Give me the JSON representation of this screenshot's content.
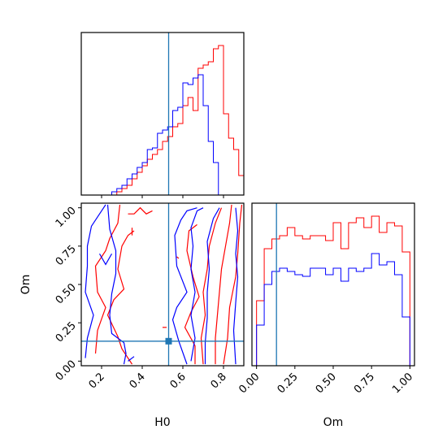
{
  "chart_data": {
    "type": "corner",
    "truth": {
      "H0": 0.53,
      "Om": 0.13
    },
    "series": [
      {
        "color": "#ff0000"
      },
      {
        "color": "#0000ff"
      }
    ],
    "truth_color": "#1f77b4",
    "hist_H0": {
      "xlim": [
        0.1,
        0.9
      ],
      "ticks": [
        0.2,
        0.4,
        0.6,
        0.8
      ],
      "bin_edges": [
        0.1,
        0.125,
        0.15,
        0.175,
        0.2,
        0.225,
        0.25,
        0.275,
        0.3,
        0.325,
        0.35,
        0.375,
        0.4,
        0.425,
        0.45,
        0.475,
        0.5,
        0.525,
        0.55,
        0.575,
        0.6,
        0.625,
        0.65,
        0.675,
        0.7,
        0.725,
        0.75,
        0.775,
        0.8,
        0.825,
        0.85,
        0.875,
        0.9
      ],
      "red": [
        0,
        0,
        0,
        0,
        0,
        0,
        0,
        0.02,
        0.04,
        0.06,
        0.1,
        0.14,
        0.18,
        0.22,
        0.25,
        0.28,
        0.33,
        0.36,
        0.42,
        0.44,
        0.55,
        0.6,
        0.52,
        0.78,
        0.8,
        0.82,
        0.9,
        0.92,
        0.5,
        0.35,
        0.28,
        0.12
      ],
      "blue": [
        0,
        0,
        0,
        0,
        0,
        0,
        0.02,
        0.04,
        0.06,
        0.1,
        0.13,
        0.17,
        0.2,
        0.28,
        0.29,
        0.38,
        0.4,
        0.42,
        0.52,
        0.54,
        0.69,
        0.68,
        0.72,
        0.74,
        0.55,
        0.33,
        0.2,
        0,
        0,
        0,
        0,
        0
      ]
    },
    "hist_Om": {
      "xlim": [
        -0.03,
        1.03
      ],
      "ticks": [
        0.0,
        0.25,
        0.5,
        0.75,
        1.0
      ],
      "tick_labels": [
        "0.00",
        "0.25",
        "0.50",
        "0.75",
        "1.00"
      ],
      "xlabel": "Om",
      "bin_edges": [
        0.0,
        0.05,
        0.1,
        0.15,
        0.2,
        0.25,
        0.3,
        0.35,
        0.4,
        0.45,
        0.5,
        0.55,
        0.6,
        0.65,
        0.7,
        0.75,
        0.8,
        0.85,
        0.9,
        0.95,
        1.0
      ],
      "red": [
        0.4,
        0.72,
        0.78,
        0.8,
        0.85,
        0.8,
        0.78,
        0.8,
        0.8,
        0.77,
        0.88,
        0.72,
        0.88,
        0.91,
        0.85,
        0.92,
        0.82,
        0.88,
        0.86,
        0.7
      ],
      "blue": [
        0.25,
        0.5,
        0.58,
        0.6,
        0.58,
        0.56,
        0.55,
        0.6,
        0.6,
        0.56,
        0.6,
        0.52,
        0.6,
        0.58,
        0.6,
        0.69,
        0.62,
        0.64,
        0.56,
        0.3
      ]
    },
    "contour": {
      "xlim": [
        0.1,
        0.9
      ],
      "ylim": [
        -0.03,
        1.03
      ],
      "xticks": [
        0.2,
        0.4,
        0.6,
        0.8
      ],
      "yticks": [
        0.0,
        0.25,
        0.5,
        0.75,
        1.0
      ],
      "xtick_labels": [
        "0.2",
        "0.4",
        "0.6",
        "0.8"
      ],
      "ytick_labels": [
        "0.00",
        "0.25",
        "0.50",
        "0.75",
        "1.00"
      ],
      "xlabel": "H0",
      "ylabel": "Om",
      "blue": [
        [
          [
            0.31,
            -0.02
          ],
          [
            0.32,
            0.05
          ],
          [
            0.31,
            0.12
          ],
          [
            0.25,
            0.18
          ],
          [
            0.24,
            0.3
          ],
          [
            0.25,
            0.44
          ],
          [
            0.27,
            0.57
          ],
          [
            0.27,
            0.72
          ],
          [
            0.24,
            0.86
          ],
          [
            0.23,
            1.02
          ]
        ],
        [
          [
            0.62,
            -0.02
          ],
          [
            0.58,
            0.13
          ],
          [
            0.55,
            0.27
          ],
          [
            0.57,
            0.35
          ],
          [
            0.62,
            0.45
          ],
          [
            0.57,
            0.62
          ],
          [
            0.56,
            0.82
          ],
          [
            0.59,
            0.92
          ],
          [
            0.62,
            0.98
          ],
          [
            0.67,
            1.0
          ]
        ],
        [
          [
            0.12,
            0.02
          ],
          [
            0.13,
            0.15
          ],
          [
            0.16,
            0.3
          ],
          [
            0.12,
            0.45
          ],
          [
            0.13,
            0.62
          ],
          [
            0.13,
            0.75
          ],
          [
            0.15,
            0.88
          ],
          [
            0.2,
            0.98
          ],
          [
            0.22,
            1.02
          ]
        ],
        [
          [
            0.19,
            0.7
          ],
          [
            0.22,
            0.63
          ],
          [
            0.25,
            0.7
          ]
        ],
        [
          [
            0.33,
            0.0
          ],
          [
            0.36,
            0.03
          ]
        ],
        [
          [
            0.64,
            0.0
          ],
          [
            0.66,
            0.15
          ],
          [
            0.64,
            0.3
          ],
          [
            0.66,
            0.45
          ],
          [
            0.64,
            0.6
          ],
          [
            0.65,
            0.75
          ],
          [
            0.64,
            0.87
          ],
          [
            0.67,
            0.98
          ],
          [
            0.7,
            1.0
          ]
        ],
        [
          [
            0.71,
            -0.02
          ],
          [
            0.71,
            0.12
          ],
          [
            0.72,
            0.28
          ],
          [
            0.72,
            0.45
          ],
          [
            0.73,
            0.6
          ],
          [
            0.72,
            0.78
          ],
          [
            0.75,
            0.93
          ],
          [
            0.78,
            1.0
          ]
        ],
        [
          [
            0.86,
            -0.02
          ],
          [
            0.85,
            0.2
          ],
          [
            0.86,
            0.38
          ],
          [
            0.87,
            0.55
          ],
          [
            0.86,
            0.7
          ],
          [
            0.87,
            0.85
          ],
          [
            0.86,
            1.0
          ]
        ]
      ],
      "red": [
        [
          [
            0.35,
            -0.02
          ],
          [
            0.3,
            0.08
          ],
          [
            0.28,
            0.16
          ],
          [
            0.23,
            0.3
          ],
          [
            0.26,
            0.4
          ],
          [
            0.31,
            0.47
          ],
          [
            0.28,
            0.6
          ],
          [
            0.3,
            0.75
          ],
          [
            0.33,
            0.82
          ],
          [
            0.36,
            0.85
          ]
        ],
        [
          [
            0.17,
            0.05
          ],
          [
            0.18,
            0.2
          ],
          [
            0.22,
            0.35
          ],
          [
            0.18,
            0.45
          ],
          [
            0.17,
            0.62
          ],
          [
            0.22,
            0.72
          ],
          [
            0.24,
            0.8
          ],
          [
            0.28,
            0.9
          ],
          [
            0.29,
            1.02
          ]
        ],
        [
          [
            0.33,
            0.96
          ],
          [
            0.36,
            0.96
          ],
          [
            0.39,
            1.0
          ],
          [
            0.42,
            0.96
          ],
          [
            0.45,
            0.98
          ]
        ],
        [
          [
            0.66,
            -0.02
          ],
          [
            0.66,
            0.1
          ],
          [
            0.61,
            0.22
          ],
          [
            0.64,
            0.32
          ],
          [
            0.68,
            0.42
          ],
          [
            0.65,
            0.55
          ],
          [
            0.62,
            0.72
          ],
          [
            0.63,
            0.85
          ],
          [
            0.67,
            0.89
          ]
        ],
        [
          [
            0.76,
            -0.02
          ],
          [
            0.76,
            0.15
          ],
          [
            0.77,
            0.3
          ],
          [
            0.78,
            0.45
          ],
          [
            0.79,
            0.6
          ],
          [
            0.81,
            0.75
          ],
          [
            0.83,
            0.9
          ],
          [
            0.84,
            1.02
          ]
        ],
        [
          [
            0.7,
            -0.02
          ],
          [
            0.69,
            0.15
          ],
          [
            0.71,
            0.3
          ],
          [
            0.7,
            0.45
          ],
          [
            0.72,
            0.6
          ],
          [
            0.73,
            0.75
          ],
          [
            0.76,
            0.9
          ],
          [
            0.79,
            1.0
          ]
        ],
        [
          [
            0.8,
            -0.02
          ],
          [
            0.82,
            0.15
          ],
          [
            0.83,
            0.35
          ],
          [
            0.86,
            0.55
          ],
          [
            0.87,
            0.7
          ],
          [
            0.88,
            0.9
          ],
          [
            0.89,
            1.02
          ]
        ],
        [
          [
            0.57,
            0.68
          ],
          [
            0.58,
            0.67
          ]
        ],
        [
          [
            0.35,
            0.87
          ],
          [
            0.35,
            0.82
          ]
        ],
        [
          [
            0.5,
            0.22
          ],
          [
            0.52,
            0.22
          ]
        ]
      ]
    }
  }
}
